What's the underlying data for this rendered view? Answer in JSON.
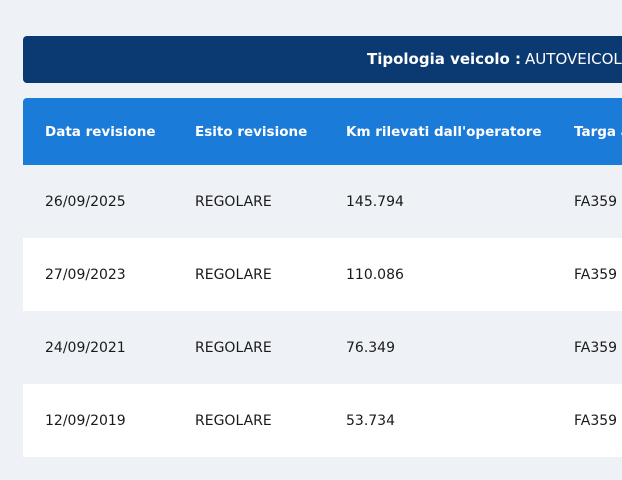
{
  "vehicle_type": {
    "label": "Tipologia veicolo :",
    "value": "AUTOVEICOLO"
  },
  "table": {
    "headers": [
      "Data revisione",
      "Esito revisione",
      "Km rilevati dall'operatore",
      "Targa a"
    ],
    "rows": [
      [
        "26/09/2025",
        "REGOLARE",
        "145.794",
        "FA359"
      ],
      [
        "27/09/2023",
        "REGOLARE",
        "110.086",
        "FA359"
      ],
      [
        "24/09/2021",
        "REGOLARE",
        "76.349",
        "FA359"
      ],
      [
        "12/09/2019",
        "REGOLARE",
        "53.734",
        "FA359"
      ]
    ]
  },
  "colors": {
    "banner": "#0b3a73",
    "header": "#1b7bd8",
    "row_alt": "#eef2f7",
    "row": "#ffffff"
  }
}
